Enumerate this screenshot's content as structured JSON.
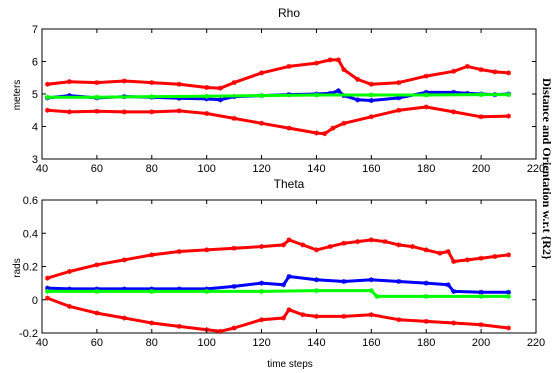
{
  "side_label": "Distance and Orientation w.r.t {R2}",
  "colors": {
    "upper_bound": "#ff0000",
    "estimate": "#0000ff",
    "truth": "#00ff00"
  },
  "chart_data": [
    {
      "type": "line",
      "title": "Rho",
      "xlabel": "",
      "ylabel": "meters",
      "xlim": [
        40,
        220
      ],
      "ylim": [
        3,
        7
      ],
      "xticks": [
        40,
        60,
        80,
        100,
        120,
        140,
        160,
        180,
        200,
        220
      ],
      "yticks": [
        3,
        4,
        5,
        6,
        7
      ],
      "grid": false,
      "legend": "none",
      "series": [
        {
          "role": "upper_bound",
          "color": "#ff0000",
          "x": [
            42,
            50,
            60,
            70,
            80,
            90,
            100,
            105,
            110,
            120,
            130,
            140,
            145,
            148,
            150,
            155,
            160,
            170,
            180,
            190,
            195,
            200,
            205,
            210
          ],
          "y": [
            5.3,
            5.38,
            5.35,
            5.4,
            5.35,
            5.3,
            5.2,
            5.18,
            5.35,
            5.65,
            5.85,
            5.95,
            6.05,
            6.05,
            5.75,
            5.45,
            5.3,
            5.35,
            5.55,
            5.7,
            5.85,
            5.75,
            5.68,
            5.65
          ]
        },
        {
          "role": "estimate",
          "color": "#0000ff",
          "x": [
            42,
            50,
            60,
            70,
            80,
            90,
            100,
            105,
            110,
            120,
            130,
            140,
            145,
            148,
            150,
            155,
            160,
            170,
            180,
            190,
            195,
            200,
            205,
            210
          ],
          "y": [
            4.88,
            4.95,
            4.88,
            4.92,
            4.9,
            4.87,
            4.85,
            4.82,
            4.92,
            4.95,
            4.98,
            5.0,
            5.02,
            5.1,
            4.95,
            4.82,
            4.8,
            4.88,
            5.05,
            5.05,
            5.02,
            5.0,
            4.98,
            5.0
          ]
        },
        {
          "role": "truth",
          "color": "#00ff00",
          "x": [
            42,
            60,
            80,
            100,
            120,
            140,
            160,
            180,
            200,
            210
          ],
          "y": [
            4.9,
            4.9,
            4.92,
            4.93,
            4.95,
            4.97,
            4.97,
            4.97,
            4.98,
            4.98
          ]
        },
        {
          "role": "lower_bound",
          "color": "#ff0000",
          "x": [
            42,
            50,
            60,
            70,
            80,
            90,
            100,
            110,
            120,
            130,
            140,
            143,
            146,
            150,
            160,
            170,
            180,
            190,
            200,
            210
          ],
          "y": [
            4.5,
            4.45,
            4.47,
            4.45,
            4.45,
            4.48,
            4.4,
            4.25,
            4.1,
            3.95,
            3.8,
            3.78,
            3.95,
            4.1,
            4.3,
            4.5,
            4.6,
            4.45,
            4.3,
            4.32
          ]
        }
      ]
    },
    {
      "type": "line",
      "title": "Theta",
      "xlabel": "time steps",
      "ylabel": "rads",
      "xlim": [
        40,
        220
      ],
      "ylim": [
        -0.2,
        0.6
      ],
      "xticks": [
        40,
        60,
        80,
        100,
        120,
        140,
        160,
        180,
        200,
        220
      ],
      "yticks": [
        -0.2,
        0,
        0.2,
        0.4,
        0.6
      ],
      "grid": false,
      "legend": "none",
      "series": [
        {
          "role": "upper_bound",
          "color": "#ff0000",
          "x": [
            42,
            50,
            60,
            70,
            80,
            90,
            100,
            110,
            120,
            128,
            130,
            135,
            140,
            145,
            150,
            155,
            160,
            165,
            170,
            175,
            180,
            185,
            188,
            190,
            195,
            200,
            205,
            210
          ],
          "y": [
            0.13,
            0.17,
            0.21,
            0.24,
            0.27,
            0.29,
            0.3,
            0.31,
            0.32,
            0.33,
            0.36,
            0.33,
            0.3,
            0.32,
            0.34,
            0.35,
            0.36,
            0.35,
            0.33,
            0.32,
            0.3,
            0.28,
            0.29,
            0.23,
            0.24,
            0.25,
            0.26,
            0.27
          ]
        },
        {
          "role": "estimate",
          "color": "#0000ff",
          "x": [
            42,
            50,
            60,
            70,
            80,
            90,
            100,
            110,
            120,
            128,
            130,
            140,
            150,
            160,
            170,
            180,
            188,
            190,
            200,
            210
          ],
          "y": [
            0.07,
            0.065,
            0.065,
            0.065,
            0.065,
            0.065,
            0.065,
            0.08,
            0.1,
            0.09,
            0.14,
            0.12,
            0.11,
            0.12,
            0.11,
            0.1,
            0.09,
            0.05,
            0.045,
            0.045
          ]
        },
        {
          "role": "truth",
          "color": "#00ff00",
          "x": [
            42,
            60,
            80,
            100,
            120,
            140,
            160,
            162,
            180,
            200,
            210
          ],
          "y": [
            0.05,
            0.05,
            0.05,
            0.05,
            0.05,
            0.055,
            0.055,
            0.02,
            0.02,
            0.02,
            0.02
          ]
        },
        {
          "role": "lower_bound",
          "color": "#ff0000",
          "x": [
            42,
            50,
            60,
            70,
            80,
            90,
            100,
            105,
            110,
            120,
            128,
            130,
            135,
            140,
            150,
            160,
            170,
            180,
            190,
            200,
            210
          ],
          "y": [
            0.01,
            -0.04,
            -0.08,
            -0.11,
            -0.14,
            -0.16,
            -0.18,
            -0.19,
            -0.17,
            -0.12,
            -0.11,
            -0.06,
            -0.09,
            -0.1,
            -0.1,
            -0.09,
            -0.12,
            -0.13,
            -0.14,
            -0.15,
            -0.17
          ]
        }
      ]
    }
  ]
}
